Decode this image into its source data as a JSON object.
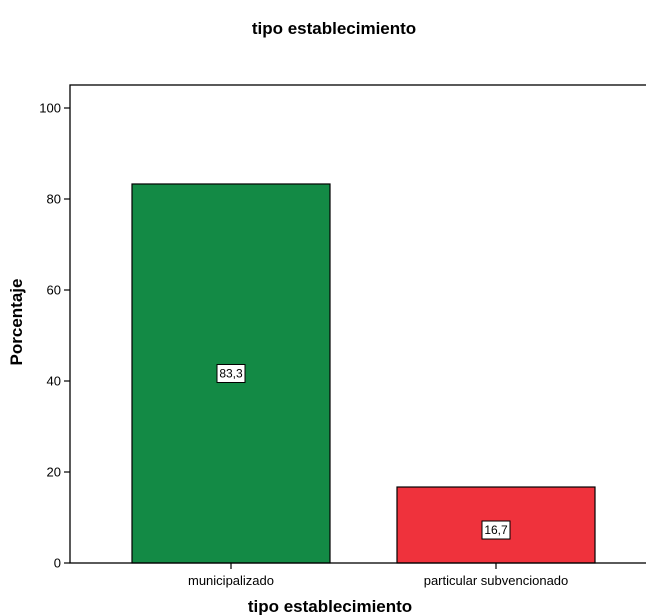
{
  "chart_data": {
    "type": "bar",
    "title": "tipo establecimiento",
    "xlabel": "tipo establecimiento",
    "ylabel": "Porcentaje",
    "categories": [
      "municipalizado",
      "particular subvencionado"
    ],
    "values": [
      83.3,
      16.7
    ],
    "value_labels": [
      "83,3",
      "16,7"
    ],
    "yticks": [
      "0",
      "20",
      "40",
      "60",
      "80",
      "100"
    ],
    "ytick_values": [
      0,
      20,
      40,
      60,
      80,
      100
    ],
    "ylim": [
      0,
      100
    ],
    "colors": [
      "#138a45",
      "#ef323c"
    ],
    "grid": false,
    "legend": "none"
  }
}
